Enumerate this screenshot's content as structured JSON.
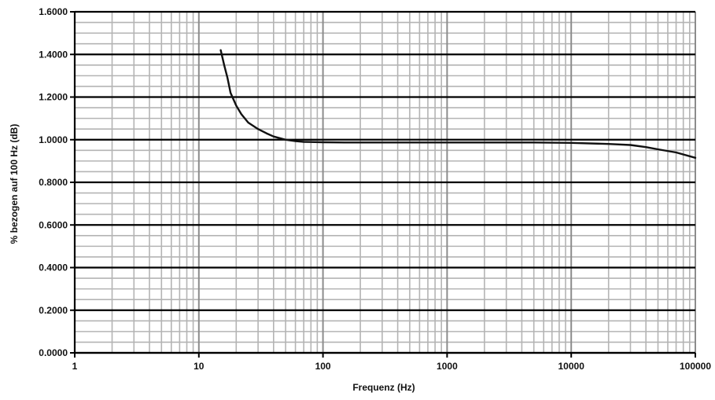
{
  "chart_data": {
    "type": "line",
    "title": "",
    "xlabel": "Frequenz (Hz)",
    "ylabel": "% bezogen auf 100 Hz (dB)",
    "x_scale": "log",
    "xlim": [
      1,
      100000
    ],
    "ylim": [
      0,
      1.6
    ],
    "x_ticks": [
      1,
      10,
      100,
      1000,
      10000,
      100000
    ],
    "x_tick_labels": [
      "1",
      "10",
      "100",
      "1000",
      "10000",
      "100000"
    ],
    "y_ticks": [
      0,
      0.2,
      0.4,
      0.6,
      0.8,
      1.0,
      1.2,
      1.4,
      1.6
    ],
    "y_tick_labels": [
      "0.0000",
      "0.2000",
      "0.4000",
      "0.6000",
      "0.8000",
      "1.0000",
      "1.2000",
      "1.4000",
      "1.6000"
    ],
    "grid": true,
    "legend": "none",
    "colors": {
      "line": "#111111",
      "major_grid": "#000000",
      "minor_grid": "#b4b4b4",
      "background": "#ffffff"
    },
    "series": [
      {
        "x": [
          15,
          16,
          17,
          18,
          20,
          22,
          25,
          30,
          35,
          40,
          50,
          60,
          70,
          80,
          100,
          150,
          200,
          300,
          500,
          1000,
          2000,
          5000,
          10000,
          20000,
          30000,
          40000,
          50000,
          70000,
          100000
        ],
        "values": [
          1.42,
          1.35,
          1.29,
          1.22,
          1.16,
          1.12,
          1.08,
          1.05,
          1.03,
          1.015,
          1.0,
          0.993,
          0.99,
          0.989,
          0.988,
          0.987,
          0.987,
          0.987,
          0.987,
          0.987,
          0.987,
          0.987,
          0.985,
          0.98,
          0.975,
          0.965,
          0.955,
          0.94,
          0.915
        ]
      }
    ]
  }
}
